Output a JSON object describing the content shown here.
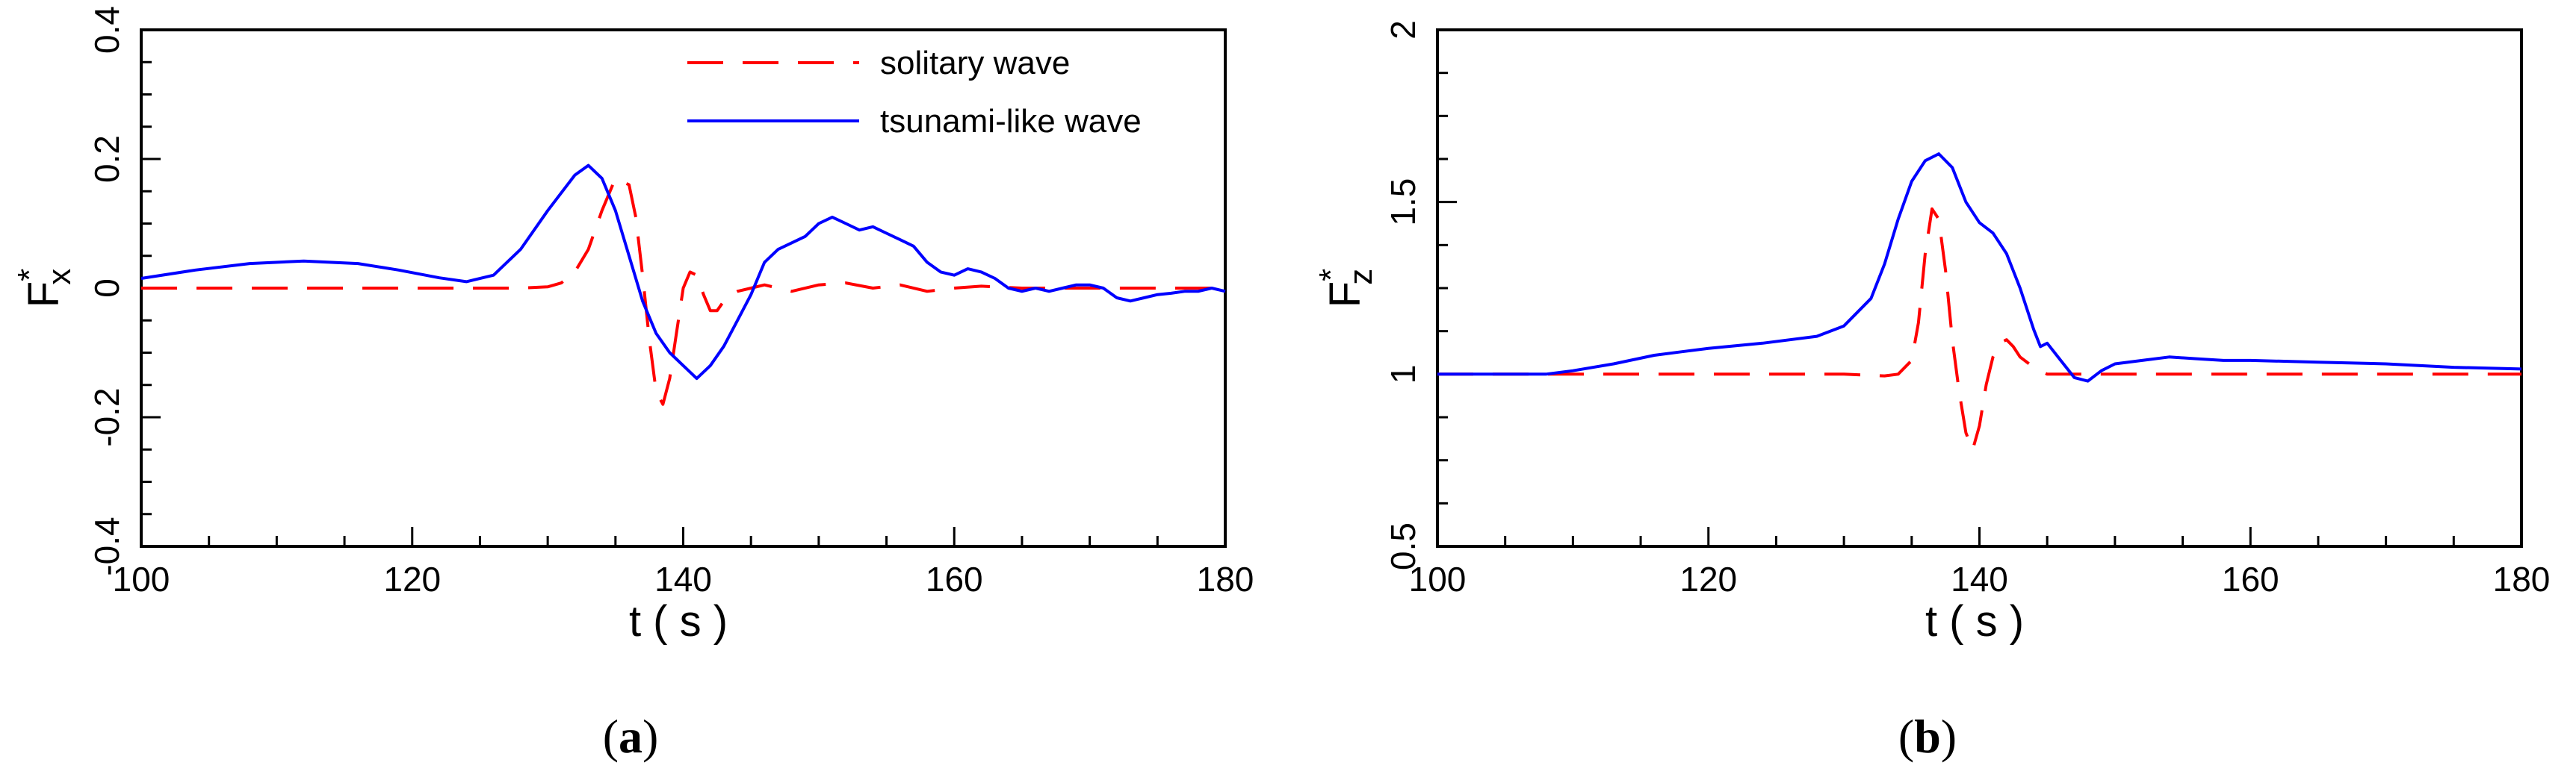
{
  "chart_data": [
    {
      "type": "line",
      "panel_label": "(a)",
      "panel_letter": "a",
      "xlabel": "t ( s )",
      "ylabel_base": "F",
      "ylabel_sup": "*",
      "ylabel_sub": "x",
      "xlim": [
        100,
        180
      ],
      "ylim": [
        -0.4,
        0.4
      ],
      "xticks": [
        100,
        120,
        140,
        160,
        180
      ],
      "xtick_labels": [
        "100",
        "120",
        "140",
        "160",
        "180"
      ],
      "yticks": [
        -0.4,
        -0.2,
        0,
        0.2,
        0.4
      ],
      "ytick_labels": [
        "-0.4",
        "-0.2",
        "0",
        "0.2",
        "0.4"
      ],
      "legend": {
        "placement": "top-center",
        "entries": [
          "solitary wave",
          "tsunami-like wave"
        ]
      },
      "series": [
        {
          "name": "solitary wave",
          "color": "#ff0000",
          "dash": "dashed",
          "x": [
            100,
            110,
            120,
            128,
            130,
            131,
            132,
            133,
            134,
            135,
            136,
            136.5,
            137,
            137.5,
            138,
            138.5,
            139,
            139.5,
            140,
            140.5,
            141,
            141.5,
            142,
            142.5,
            143,
            143.5,
            144,
            145,
            146,
            147,
            148,
            150,
            152,
            154,
            156,
            158,
            160,
            162,
            165,
            170,
            175,
            180
          ],
          "y": [
            0,
            0,
            0,
            0,
            0.002,
            0.008,
            0.025,
            0.06,
            0.12,
            0.17,
            0.16,
            0.11,
            0.02,
            -0.08,
            -0.16,
            -0.18,
            -0.14,
            -0.07,
            0.0,
            0.025,
            0.02,
            -0.01,
            -0.035,
            -0.035,
            -0.02,
            -0.01,
            -0.005,
            0.0,
            0.005,
            0.0,
            -0.005,
            0.005,
            0.008,
            0.0,
            0.005,
            -0.005,
            0.0,
            0.003,
            0.0,
            0.0,
            0.0,
            0.0
          ]
        },
        {
          "name": "tsunami-like wave",
          "color": "#0000ff",
          "dash": "solid",
          "x": [
            100,
            104,
            108,
            112,
            116,
            119,
            122,
            124,
            126,
            128,
            130,
            132,
            133,
            134,
            135,
            136,
            137,
            138,
            139,
            140,
            141,
            142,
            143,
            144,
            145,
            146,
            147,
            148,
            149,
            150,
            151,
            152,
            153,
            154,
            155,
            156,
            157,
            158,
            159,
            160,
            161,
            162,
            163,
            164,
            165,
            166,
            167,
            168,
            169,
            170,
            171,
            172,
            173,
            174,
            175,
            176,
            177,
            178,
            179,
            180
          ],
          "y": [
            0.015,
            0.028,
            0.038,
            0.042,
            0.038,
            0.028,
            0.016,
            0.01,
            0.02,
            0.06,
            0.12,
            0.175,
            0.19,
            0.17,
            0.12,
            0.05,
            -0.02,
            -0.07,
            -0.1,
            -0.12,
            -0.14,
            -0.12,
            -0.09,
            -0.05,
            -0.01,
            0.04,
            0.06,
            0.07,
            0.08,
            0.1,
            0.11,
            0.1,
            0.09,
            0.095,
            0.085,
            0.075,
            0.065,
            0.04,
            0.025,
            0.02,
            0.03,
            0.025,
            0.015,
            0.0,
            -0.005,
            0.0,
            -0.005,
            0.0,
            0.005,
            0.005,
            0.0,
            -0.015,
            -0.02,
            -0.015,
            -0.01,
            -0.008,
            -0.005,
            -0.005,
            0.0,
            -0.005
          ]
        }
      ]
    },
    {
      "type": "line",
      "panel_label": "(b)",
      "panel_letter": "b",
      "xlabel": "t ( s )",
      "ylabel_base": "F",
      "ylabel_sup": "*",
      "ylabel_sub": "z",
      "xlim": [
        100,
        180
      ],
      "ylim": [
        0.5,
        2
      ],
      "xticks": [
        100,
        120,
        140,
        160,
        180
      ],
      "xtick_labels": [
        "100",
        "120",
        "140",
        "160",
        "180"
      ],
      "yticks": [
        0.5,
        1,
        1.5,
        2
      ],
      "ytick_labels": [
        "0.5",
        "1",
        "1.5",
        "2"
      ],
      "series": [
        {
          "name": "solitary wave",
          "color": "#ff0000",
          "dash": "dashed",
          "x": [
            100,
            110,
            120,
            130,
            133,
            134,
            135,
            135.5,
            136,
            136.5,
            137,
            137.5,
            138,
            138.5,
            139,
            139.5,
            140,
            140.5,
            141,
            141.5,
            142,
            142.5,
            143,
            144,
            145,
            146,
            148,
            150,
            160,
            170,
            180
          ],
          "y": [
            1.0,
            1.0,
            1.0,
            1.0,
            0.995,
            1.0,
            1.04,
            1.15,
            1.35,
            1.48,
            1.45,
            1.3,
            1.1,
            0.95,
            0.83,
            0.78,
            0.85,
            0.97,
            1.05,
            1.09,
            1.1,
            1.08,
            1.05,
            1.02,
            1.0,
            1.0,
            1.0,
            1.0,
            1.0,
            1.0,
            1.0
          ]
        },
        {
          "name": "tsunami-like wave",
          "color": "#0000ff",
          "dash": "solid",
          "x": [
            100,
            105,
            108,
            110,
            113,
            116,
            118,
            120,
            124,
            128,
            130,
            132,
            133,
            134,
            135,
            136,
            137,
            138,
            139,
            140,
            141,
            142,
            143,
            144,
            144.5,
            145,
            146,
            147,
            148,
            149,
            150,
            152,
            154,
            156,
            158,
            160,
            165,
            170,
            175,
            180
          ],
          "y": [
            1.0,
            1.0,
            1.0,
            1.01,
            1.03,
            1.055,
            1.065,
            1.075,
            1.09,
            1.11,
            1.14,
            1.22,
            1.32,
            1.45,
            1.56,
            1.62,
            1.64,
            1.6,
            1.5,
            1.44,
            1.41,
            1.35,
            1.25,
            1.13,
            1.08,
            1.09,
            1.04,
            0.99,
            0.98,
            1.01,
            1.03,
            1.04,
            1.05,
            1.045,
            1.04,
            1.04,
            1.035,
            1.03,
            1.02,
            1.015
          ]
        }
      ]
    }
  ]
}
